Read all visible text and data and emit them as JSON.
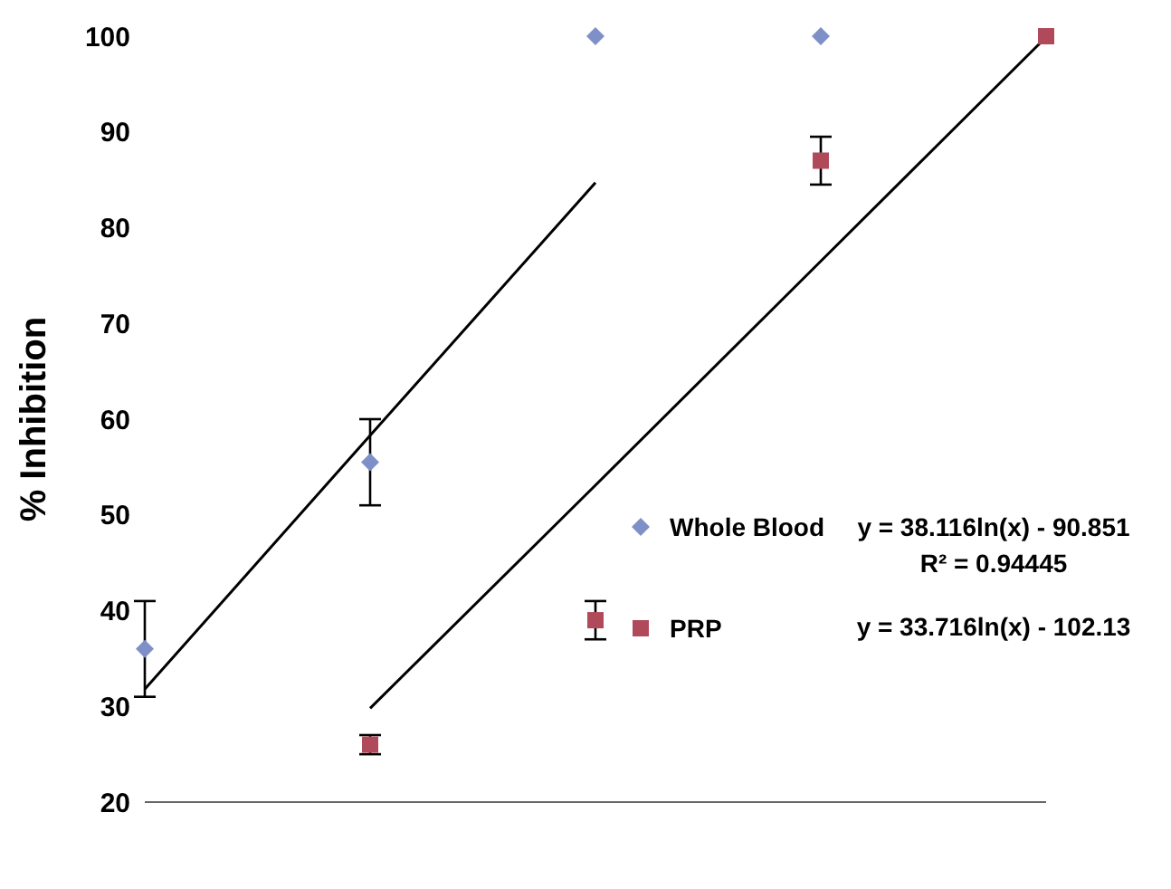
{
  "chart_data": {
    "type": "scatter",
    "ylabel": "% Inhibition",
    "categories": [
      null,
      null,
      null,
      null,
      null
    ],
    "ylim": [
      20,
      100
    ],
    "yticks": [
      20,
      30,
      40,
      50,
      60,
      70,
      80,
      90,
      100
    ],
    "grid": false,
    "legend": "bottom right",
    "series": [
      {
        "name": "Whole Blood",
        "color": "#7f8fc8",
        "marker": "diamond",
        "values": [
          36,
          55.5,
          100,
          100,
          null
        ],
        "errors": [
          5,
          4.5,
          null,
          null,
          null
        ]
      },
      {
        "name": "PRP",
        "color": "#b04a5a",
        "marker": "square",
        "values": [
          null,
          26,
          39,
          87,
          100
        ],
        "errors": [
          null,
          1,
          2,
          2.5,
          null
        ]
      },
      {
        "type": "line",
        "color": "#000000",
        "marker": "none",
        "line_style": "solid",
        "values": [
          31.8,
          58.3,
          84.7,
          null,
          null
        ]
      },
      {
        "type": "line",
        "color": "#000000",
        "marker": "none",
        "line_style": "solid",
        "values": [
          null,
          29.8,
          53.1,
          76.5,
          99.9
        ]
      }
    ],
    "annotations": [
      "y = 38.116ln(x) - 90.851",
      "R² = 0.94445",
      "y = 33.716ln(x) - 102.13"
    ]
  }
}
